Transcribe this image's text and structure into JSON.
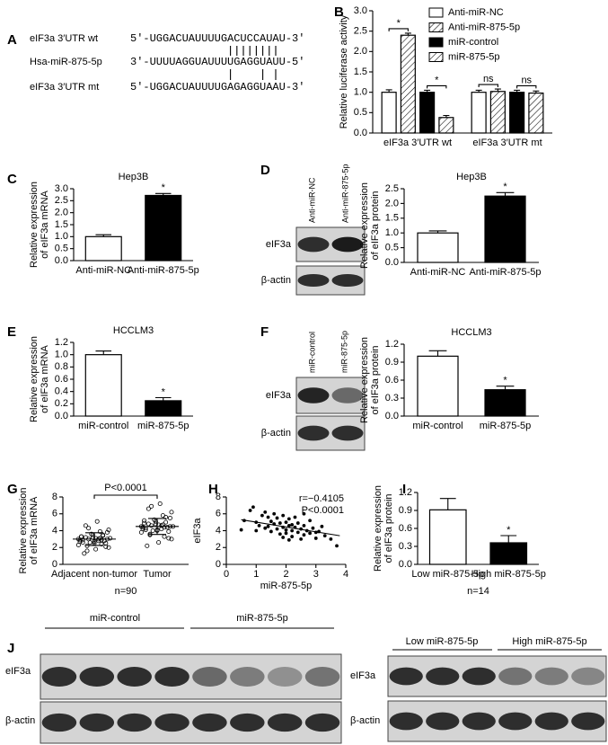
{
  "panels": [
    "A",
    "B",
    "C",
    "D",
    "E",
    "F",
    "G",
    "H",
    "I",
    "J"
  ],
  "sequences": [
    {
      "label": "eIF3a 3′UTR wt",
      "sequence": "5′-UGGACUAUUUUGACUCCAUAU-3′"
    },
    {
      "label": "Hsa-miR-875-5p",
      "sequence": "3′-UUUUAGGUAUUUUGAGGUAUU-5′"
    },
    {
      "label": "eIF3a 3′UTR mt",
      "sequence": "5′-UGGACUAUUUUGAGAGGUAAU-3′"
    }
  ],
  "blots": {
    "D": {
      "lanes": [
        "Anti-miR-NC",
        "Anti-miR-875-5p"
      ],
      "rows": [
        "eIF3a",
        "β-actin"
      ]
    },
    "F": {
      "lanes": [
        "miR-control",
        "miR-875-5p"
      ],
      "rows": [
        "eIF3a",
        "β-actin"
      ]
    },
    "J": [
      {
        "groups": [
          "miR-control",
          "miR-875-5p"
        ],
        "rows": [
          "eIF3a",
          "β-actin"
        ]
      },
      {
        "groups": [
          "Low miR-875-5p",
          "High miR-875-5p"
        ],
        "rows": [
          "eIF3a",
          "β-actin"
        ]
      }
    ]
  },
  "chart_data": [
    {
      "type": "bar",
      "ylabel": "Relative luciferase activity",
      "categories": [
        "eIF3a 3′UTR wt",
        "eIF3a 3′UTR mt"
      ],
      "series": [
        {
          "name": "Anti-miR-NC",
          "color": "#ffffff",
          "hatch": false,
          "values": [
            1,
            1
          ],
          "errors": [
            0.06,
            0.05
          ]
        },
        {
          "name": "Anti-miR-875-5p",
          "color": "#ffffff",
          "hatch": true,
          "values": [
            2.4,
            1.02
          ],
          "errors": [
            0.05,
            0.06
          ]
        },
        {
          "name": "miR-control",
          "color": "#000000",
          "hatch": false,
          "values": [
            1,
            1
          ],
          "errors": [
            0.05,
            0.05
          ]
        },
        {
          "name": "miR-875-5p",
          "color": "#ffffff",
          "hatch": true,
          "values": [
            0.38,
            0.98
          ],
          "errors": [
            0.05,
            0.05
          ]
        }
      ],
      "annotations": [
        "*",
        "*",
        "ns",
        "ns"
      ],
      "legend": "upper right",
      "ylim": [
        0,
        3
      ],
      "yticks": [
        {
          "value": 0,
          "label": "0.0"
        },
        0.5,
        {
          "value": 1,
          "label": "1.0"
        },
        1.5,
        {
          "value": 2,
          "label": "2.0"
        },
        2.5,
        {
          "value": 3,
          "label": "3.0"
        }
      ]
    },
    {
      "type": "bar",
      "title": "Hep3B",
      "ylabel": [
        "Relative expression",
        "of eIF3a mRNA"
      ],
      "categories": [
        "Anti-miR-NC",
        "Anti-miR-875-5p"
      ],
      "values": [
        1,
        2.72
      ],
      "errors": [
        0.08,
        0.08
      ],
      "colors": [
        "#ffffff",
        "#000000"
      ],
      "annotations": [
        null,
        "*"
      ],
      "ylim": [
        0,
        3
      ],
      "yticks": [
        {
          "value": 0,
          "label": "0.0"
        },
        0.5,
        {
          "value": 1,
          "label": "1.0"
        },
        1.5,
        {
          "value": 2,
          "label": "2.0"
        },
        2.5,
        {
          "value": 3,
          "label": "3.0"
        }
      ]
    },
    {
      "type": "bar",
      "title": "Hep3B",
      "ylabel": [
        "Relative expression",
        "of eIF3a protein"
      ],
      "categories": [
        "Anti-miR-NC",
        "Anti-miR-875-5p"
      ],
      "values": [
        1,
        2.25
      ],
      "errors": [
        0.07,
        0.12
      ],
      "colors": [
        "#ffffff",
        "#000000"
      ],
      "annotations": [
        null,
        "*"
      ],
      "ylim": [
        0,
        2.5
      ],
      "yticks": [
        {
          "value": 0,
          "label": "0.0"
        },
        0.5,
        {
          "value": 1,
          "label": "1.0"
        },
        1.5,
        {
          "value": 2,
          "label": "2.0"
        },
        2.5
      ]
    },
    {
      "type": "bar",
      "title": "HCCLM3",
      "ylabel": [
        "Relative expression",
        "of eIF3a mRNA"
      ],
      "categories": [
        "miR-control",
        "miR-875-5p"
      ],
      "values": [
        1,
        0.25
      ],
      "errors": [
        0.06,
        0.05
      ],
      "colors": [
        "#ffffff",
        "#000000"
      ],
      "annotations": [
        null,
        "*"
      ],
      "ylim": [
        0,
        1.2
      ],
      "yticks": [
        {
          "value": 0,
          "label": "0.0"
        },
        0.2,
        0.4,
        0.6,
        0.8,
        {
          "value": 1,
          "label": "1.0"
        },
        1.2
      ]
    },
    {
      "type": "bar",
      "title": "HCCLM3",
      "ylabel": [
        "Relative expression",
        "of eIF3a protein"
      ],
      "categories": [
        "miR-control",
        "miR-875-5p"
      ],
      "values": [
        1,
        0.44
      ],
      "errors": [
        0.09,
        0.06
      ],
      "colors": [
        "#ffffff",
        "#000000"
      ],
      "annotations": [
        null,
        "*"
      ],
      "ylim": [
        0,
        1.2
      ],
      "yticks": [
        {
          "value": 0,
          "label": "0.0"
        },
        0.3,
        0.6,
        0.9,
        1.2
      ]
    },
    {
      "type": "strip",
      "ylabel": [
        "Relative expression",
        "of eIF3a mRNA"
      ],
      "color": "#000000",
      "groups": [
        {
          "name": "Adjacent non-tumor",
          "mean": 3,
          "sd": 0.75,
          "values": [
            3.0,
            2.8,
            3.2,
            2.5,
            3.5,
            2.9,
            3.1,
            2.2,
            3.8,
            2.7,
            3.3,
            2.4,
            3.0,
            4.1,
            1.8,
            2.9,
            3.4,
            2.6,
            3.1,
            5.1,
            1.3,
            2.8,
            3.6,
            2.3,
            3.0,
            4.6,
            2.1,
            3.2,
            2.7,
            3.9,
            1.6,
            3.0,
            2.5,
            3.3,
            2.9,
            4.3,
            2.0,
            3.1,
            2.6,
            3.5
          ]
        },
        {
          "name": "Tumor",
          "mean": 4.5,
          "sd": 0.95,
          "values": [
            4.5,
            4.2,
            4.8,
            3.9,
            5.1,
            4.4,
            4.7,
            3.6,
            5.5,
            4.1,
            4.9,
            3.3,
            4.6,
            6.2,
            2.6,
            4.3,
            5.0,
            4.0,
            4.5,
            7.2,
            2.2,
            4.4,
            5.3,
            3.8,
            4.6,
            6.6,
            3.1,
            4.8,
            4.2,
            5.8,
            3.5,
            4.5,
            4.0,
            5.2,
            4.4,
            6.9,
            3.0,
            4.7,
            4.1,
            5.6
          ]
        }
      ],
      "annotation": "P<0.0001",
      "note": "n=90",
      "ylim": [
        0,
        8
      ],
      "yticks": [
        0,
        2,
        4,
        6,
        8
      ]
    },
    {
      "type": "scatter",
      "ylabel": "eIF3a",
      "xlabel": "miR-875-5p",
      "color": "#000000",
      "x": [
        0.6,
        0.8,
        0.9,
        1.0,
        1.1,
        1.2,
        1.3,
        1.3,
        1.4,
        1.5,
        1.5,
        1.6,
        1.6,
        1.7,
        1.7,
        1.8,
        1.8,
        1.9,
        1.9,
        1.9,
        2.0,
        2.0,
        2.0,
        2.1,
        2.1,
        2.1,
        2.2,
        2.2,
        2.2,
        2.3,
        2.3,
        2.4,
        2.4,
        2.5,
        2.5,
        2.6,
        2.6,
        2.7,
        2.8,
        2.8,
        2.9,
        3.0,
        3.1,
        3.2,
        3.3,
        3.5,
        3.7,
        0.5,
        1.0,
        1.4,
        2.6,
        3.0
      ],
      "values": [
        5.2,
        6.4,
        6.8,
        5.0,
        4.6,
        5.8,
        4.3,
        6.2,
        5.6,
        3.9,
        5.1,
        4.8,
        6.0,
        4.2,
        5.5,
        3.6,
        4.9,
        4.4,
        5.8,
        3.2,
        4.1,
        5.0,
        3.7,
        4.6,
        2.9,
        5.4,
        4.0,
        4.7,
        3.3,
        4.4,
        5.6,
        3.8,
        4.9,
        4.2,
        3.0,
        4.6,
        3.5,
        4.0,
        3.7,
        5.2,
        4.3,
        3.1,
        3.9,
        4.5,
        3.4,
        3.0,
        2.2,
        4.1,
        4.0,
        4.5,
        6.0,
        3.8
      ],
      "trend": {
        "x": [
          0.5,
          3.8
        ],
        "values": [
          5.3,
          3.4
        ]
      },
      "annotations": [
        "r=−0.4105",
        "P<0.0001"
      ],
      "xlim": [
        0,
        4
      ],
      "xticks": [
        0,
        1,
        2,
        3,
        4
      ],
      "ylim": [
        0,
        8
      ],
      "yticks": [
        0,
        2,
        4,
        6,
        8
      ]
    },
    {
      "type": "bar",
      "ylabel": [
        "Relative expression",
        "of eIF3a protein"
      ],
      "categories": [
        "Low miR-875-5p",
        "High miR-875-5p"
      ],
      "values": [
        0.91,
        0.36
      ],
      "errors": [
        0.19,
        0.12
      ],
      "colors": [
        "#ffffff",
        "#000000"
      ],
      "annotations": [
        null,
        "*"
      ],
      "note": "n=14",
      "ylim": [
        0,
        1.2
      ],
      "yticks": [
        {
          "value": 0,
          "label": "0.0"
        },
        0.3,
        0.6,
        0.9,
        1.2
      ]
    }
  ]
}
